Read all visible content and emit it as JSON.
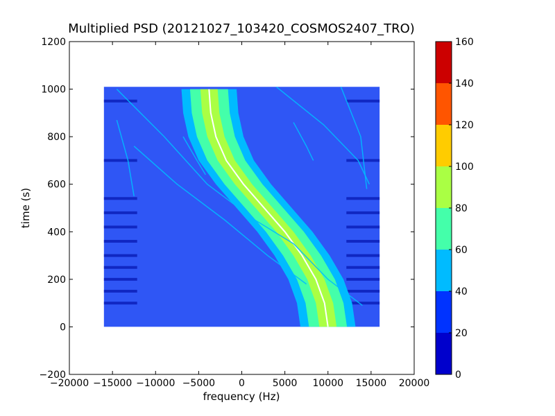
{
  "chart_data": {
    "type": "heatmap",
    "title": "Multiplied PSD (20121027_103420_COSMOS2407_TRO)",
    "xlabel": "frequency (Hz)",
    "ylabel": "time (s)",
    "xlim": [
      -20000,
      20000
    ],
    "ylim": [
      -200,
      1200
    ],
    "xticks": [
      -20000,
      -15000,
      -10000,
      -5000,
      0,
      5000,
      10000,
      15000,
      20000
    ],
    "yticks": [
      -200,
      0,
      200,
      400,
      600,
      800,
      1000,
      1200
    ],
    "data_extent": {
      "x": [
        -16000,
        16000
      ],
      "y": [
        0,
        1010
      ]
    },
    "colorbar": {
      "ticks": [
        0,
        20,
        40,
        60,
        80,
        100,
        120,
        140,
        160
      ],
      "levels": [
        {
          "from": 0,
          "to": 20,
          "color": "#0000cc"
        },
        {
          "from": 20,
          "to": 40,
          "color": "#0033ff"
        },
        {
          "from": 40,
          "to": 60,
          "color": "#00bbff"
        },
        {
          "from": 60,
          "to": 80,
          "color": "#44ffaa"
        },
        {
          "from": 80,
          "to": 100,
          "color": "#aaff44"
        },
        {
          "from": 100,
          "to": 120,
          "color": "#ffcc00"
        },
        {
          "from": 120,
          "to": 140,
          "color": "#ff5500"
        },
        {
          "from": 140,
          "to": 160,
          "color": "#cc0000"
        }
      ]
    },
    "background_level_color": "#2f56f5",
    "main_signal": {
      "center_track": [
        {
          "t": 0,
          "f": 10000
        },
        {
          "t": 100,
          "f": 9600
        },
        {
          "t": 200,
          "f": 8600
        },
        {
          "t": 300,
          "f": 7000
        },
        {
          "t": 400,
          "f": 5000
        },
        {
          "t": 500,
          "f": 2600
        },
        {
          "t": 600,
          "f": 200
        },
        {
          "t": 700,
          "f": -1800
        },
        {
          "t": 800,
          "f": -3000
        },
        {
          "t": 900,
          "f": -3600
        },
        {
          "t": 1000,
          "f": -3800
        }
      ],
      "bands": [
        {
          "level": "cyan",
          "color": "#00bbff",
          "halfwidth": 3200
        },
        {
          "level": "teal",
          "color": "#44ffaa",
          "halfwidth": 2200
        },
        {
          "level": "yellow-green",
          "color": "#aaff44",
          "halfwidth": 1000
        },
        {
          "level": "peak",
          "color": "#ffffff",
          "halfwidth": 80
        }
      ]
    },
    "secondary_traces": [
      {
        "color": "#00bbff",
        "points": [
          [
            -14500,
            1000
          ],
          [
            -9000,
            800
          ],
          [
            -4000,
            600
          ],
          [
            1500,
            450
          ],
          [
            6000,
            350
          ],
          [
            10000,
            200
          ],
          [
            14000,
            90
          ]
        ]
      },
      {
        "color": "#00bbff",
        "points": [
          [
            -12500,
            760
          ],
          [
            -7500,
            600
          ],
          [
            -2000,
            450
          ],
          [
            3000,
            300
          ],
          [
            7500,
            180
          ]
        ]
      },
      {
        "color": "#00bbff",
        "points": [
          [
            4000,
            1010
          ],
          [
            9500,
            850
          ],
          [
            13500,
            700
          ],
          [
            14800,
            600
          ]
        ]
      },
      {
        "color": "#00bbff",
        "points": [
          [
            11500,
            1010
          ],
          [
            13800,
            800
          ],
          [
            14500,
            580
          ]
        ]
      },
      {
        "color": "#00bbff",
        "points": [
          [
            6000,
            860
          ],
          [
            7500,
            760
          ],
          [
            8300,
            700
          ]
        ]
      },
      {
        "color": "#00bbff",
        "points": [
          [
            -14500,
            870
          ],
          [
            -13200,
            700
          ],
          [
            -12500,
            550
          ]
        ]
      },
      {
        "color": "#00bbff",
        "points": [
          [
            -6800,
            800
          ],
          [
            -5200,
            700
          ],
          [
            -4200,
            640
          ]
        ]
      }
    ],
    "horizontal_artifacts": [
      {
        "t": 950,
        "level": "dark"
      },
      {
        "t": 700,
        "level": "dark"
      },
      {
        "t": 540,
        "level": "dark"
      },
      {
        "t": 480,
        "level": "dark"
      },
      {
        "t": 420,
        "level": "dark"
      },
      {
        "t": 360,
        "level": "dark"
      },
      {
        "t": 300,
        "level": "dark"
      },
      {
        "t": 250,
        "level": "dark"
      },
      {
        "t": 200,
        "level": "dark"
      },
      {
        "t": 150,
        "level": "dark"
      },
      {
        "t": 100,
        "level": "dark"
      }
    ]
  }
}
